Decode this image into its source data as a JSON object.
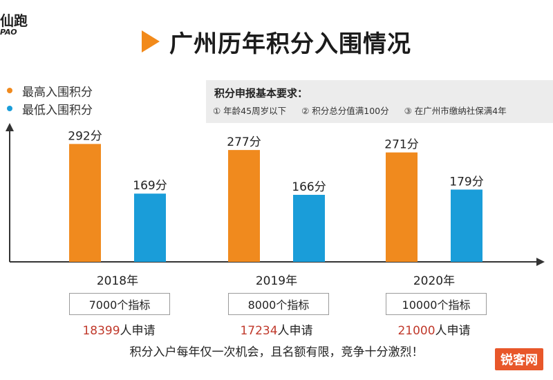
{
  "corner_logo": {
    "cn": "仙跑",
    "en": "PAO"
  },
  "title": "广州历年积分入围情况",
  "legend": [
    {
      "label": "最高入围积分",
      "color": "#f08a1e"
    },
    {
      "label": "最低入围积分",
      "color": "#1a9dd9"
    }
  ],
  "requirements": {
    "title": "积分申报基本要求：",
    "items": [
      "① 年龄45周岁以下",
      "② 积分总分值满100分",
      "③ 在广州市缴纳社保满4年"
    ]
  },
  "chart_data": {
    "type": "bar",
    "categories": [
      "2018年",
      "2019年",
      "2020年"
    ],
    "series": [
      {
        "name": "最高入围积分",
        "values": [
          292,
          277,
          271
        ],
        "labels": [
          "292分",
          "277分",
          "271分"
        ],
        "color": "#f08a1e"
      },
      {
        "name": "最低入围积分",
        "values": [
          169,
          166,
          179
        ],
        "labels": [
          "169分",
          "166分",
          "179分"
        ],
        "color": "#1a9dd9"
      }
    ],
    "ylim": [
      0,
      320
    ]
  },
  "quotas": [
    "7000个指标",
    "8000个指标",
    "10000个指标"
  ],
  "applications": [
    {
      "num": "18399",
      "suffix": "人申请"
    },
    {
      "num": "17234",
      "suffix": "人申请"
    },
    {
      "num": "21000",
      "suffix": "人申请"
    }
  ],
  "footer": "积分入户每年仅一次机会，且名额有限，竞争十分激烈！",
  "brand_mark": "锐客网"
}
